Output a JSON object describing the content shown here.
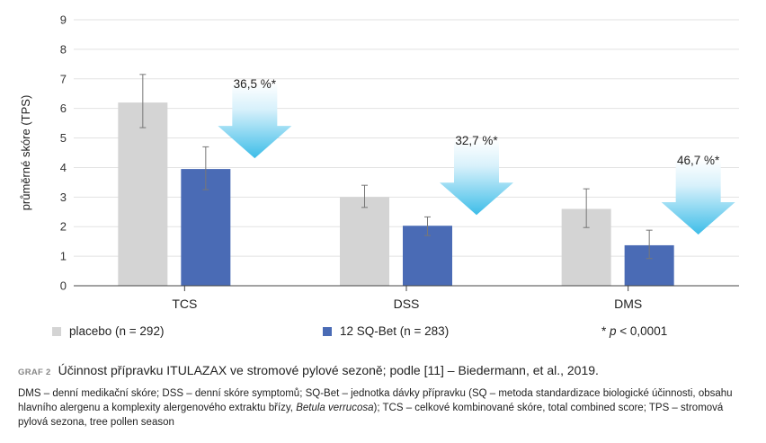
{
  "chart_data": {
    "type": "bar",
    "ylabel": "průměrné skóre (TPS)",
    "ylim": [
      0,
      9
    ],
    "yticks": [
      0,
      1,
      2,
      3,
      4,
      5,
      6,
      7,
      8,
      9
    ],
    "grid": true,
    "categories": [
      "TCS",
      "DSS",
      "DMS"
    ],
    "series": [
      {
        "name": "placebo (n = 292)",
        "color": "#d4d4d4",
        "values": [
          6.2,
          3.0,
          2.6
        ],
        "error_low": [
          5.35,
          2.65,
          1.97
        ],
        "error_high": [
          7.15,
          3.4,
          3.28
        ]
      },
      {
        "name": "12 SQ-Bet (n = 283)",
        "color": "#4a6bb5",
        "values": [
          3.95,
          2.03,
          1.37
        ],
        "error_low": [
          3.25,
          1.7,
          0.92
        ],
        "error_high": [
          4.7,
          2.33,
          1.88
        ]
      }
    ],
    "annotations": [
      "36,5 %*",
      "32,7 %*",
      "46,7 %*"
    ],
    "annotation_arrow_color_top": "#ffffff",
    "annotation_arrow_color_bottom": "#3dbde8",
    "footnote": "* p < 0,0001"
  },
  "legend": {
    "placebo": "placebo (n = 292)",
    "treatment": "12 SQ-Bet (n = 283)",
    "footnote_star": "* ",
    "footnote_p": "p",
    "footnote_rest": " < 0,0001"
  },
  "caption": {
    "label": "GRAF 2",
    "title": "Účinnost přípravku ITULAZAX ve stromové pylové sezoně; podle [11] – Biedermann, et al., 2019.",
    "body_part1": "DMS – denní medikační skóre; DSS – denní skóre symptomů; SQ-Bet – jednotka dávky přípravku (SQ – metoda standardizace biologické účinnosti, obsahu hlavního alergenu a komplexity alergenového extraktu břízy, ",
    "body_italic": "Betula verrucosa",
    "body_part2": "); TCS – celkové kombinované skóre, total combined score; TPS – stromová pylová sezona, tree pollen season"
  }
}
